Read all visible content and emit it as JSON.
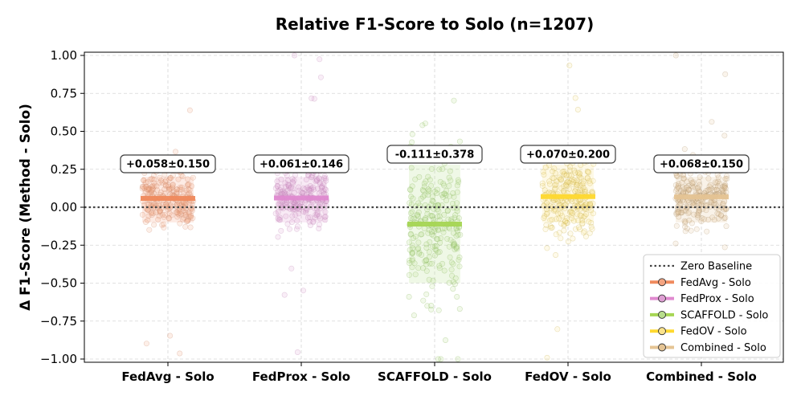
{
  "chart_data": {
    "type": "scatter",
    "title": "Relative F1-Score to Solo (n=1207)",
    "ylabel": "Δ F1-Score (Method - Solo)",
    "xlabel": "",
    "ylim": [
      -1.0,
      1.0
    ],
    "yticks": [
      "1.00",
      "0.75",
      "0.50",
      "0.25",
      "0.00",
      "−0.25",
      "−0.50",
      "−0.75",
      "−1.00"
    ],
    "ytick_values": [
      1.0,
      0.75,
      0.5,
      0.25,
      0.0,
      -0.25,
      -0.5,
      -0.75,
      -1.0
    ],
    "grid": true,
    "categories": [
      "FedAvg - Solo",
      "FedProx - Solo",
      "SCAFFOLD - Solo",
      "FedOV - Solo",
      "Combined - Solo"
    ],
    "series": [
      {
        "name": "FedAvg - Solo",
        "mean": 0.058,
        "std": 0.15,
        "label": "+0.058±0.150",
        "color": "#f4a582",
        "line_color": "#f08a5d",
        "edge_color": "#c98467",
        "band": [
          -0.1,
          0.2
        ]
      },
      {
        "name": "FedProx - Solo",
        "mean": 0.061,
        "std": 0.146,
        "label": "+0.061±0.146",
        "color": "#de9fd3",
        "line_color": "#e08ad0",
        "edge_color": "#b67fae",
        "band": [
          -0.1,
          0.2
        ]
      },
      {
        "name": "SCAFFOLD - Solo",
        "mean": -0.111,
        "std": 0.378,
        "label": "-0.111±0.378",
        "color": "#b8dd8c",
        "line_color": "#a6d654",
        "edge_color": "#7fae50",
        "band": [
          -0.5,
          0.28
        ]
      },
      {
        "name": "FedOV - Solo",
        "mean": 0.07,
        "std": 0.2,
        "label": "+0.070±0.200",
        "color": "#fbe38c",
        "line_color": "#ffd92f",
        "edge_color": "#c4a83b",
        "band": [
          -0.1,
          0.28
        ]
      },
      {
        "name": "Combined - Solo",
        "mean": 0.068,
        "std": 0.15,
        "label": "+0.068±0.150",
        "color": "#e5c494",
        "line_color": "#e5c494",
        "edge_color": "#a98e6a",
        "band": [
          -0.1,
          0.2
        ]
      }
    ],
    "baseline": {
      "name": "Zero Baseline",
      "value": 0.0
    },
    "legend_position": "bottom-right"
  }
}
